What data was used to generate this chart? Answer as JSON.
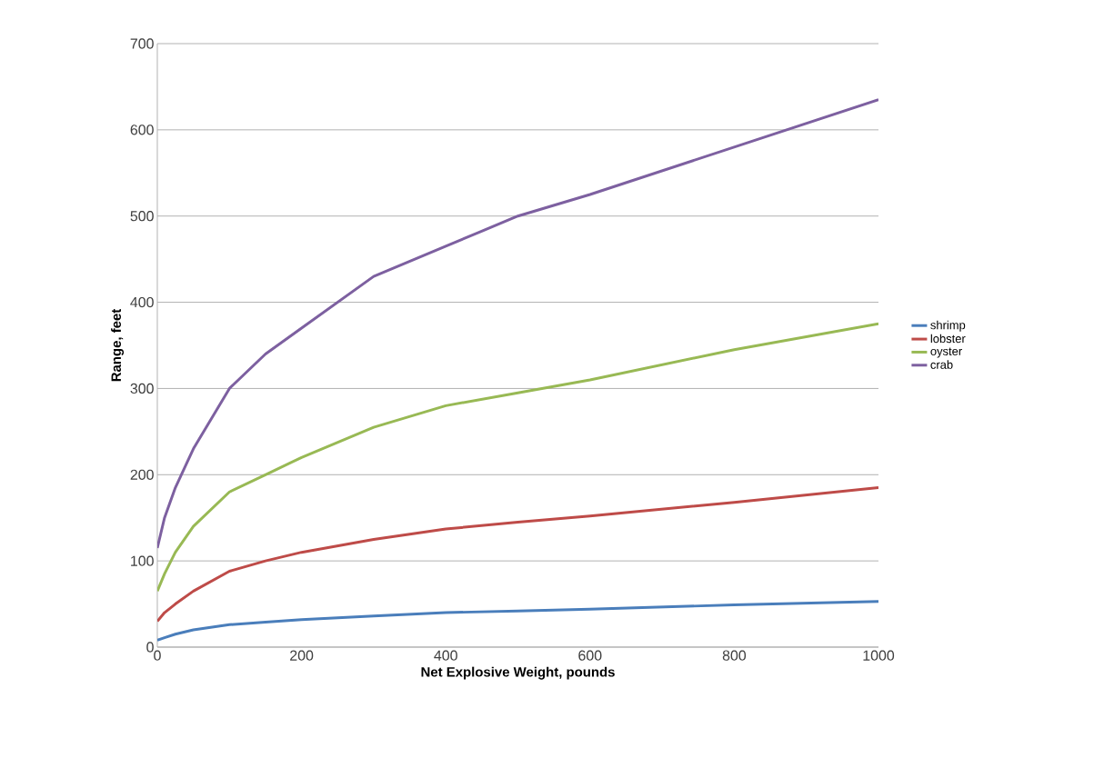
{
  "chart_data": {
    "type": "line",
    "xlabel": "Net Explosive Weight, pounds",
    "ylabel": "Range, feet",
    "x": [
      0,
      10,
      25,
      50,
      100,
      150,
      200,
      300,
      400,
      500,
      600,
      800,
      1000
    ],
    "series": [
      {
        "name": "shrimp",
        "color": "#4a7ebb",
        "values": [
          8,
          11,
          15,
          20,
          26,
          29,
          32,
          36,
          40,
          42,
          44,
          49,
          53
        ]
      },
      {
        "name": "lobster",
        "color": "#be4b48",
        "values": [
          30,
          40,
          50,
          65,
          88,
          100,
          110,
          125,
          137,
          145,
          152,
          168,
          185
        ]
      },
      {
        "name": "oyster",
        "color": "#98b954",
        "values": [
          65,
          85,
          110,
          140,
          180,
          200,
          220,
          255,
          280,
          295,
          310,
          345,
          375
        ]
      },
      {
        "name": "crab",
        "color": "#7d60a0",
        "values": [
          115,
          150,
          185,
          230,
          300,
          340,
          370,
          430,
          465,
          500,
          525,
          580,
          635
        ]
      }
    ],
    "xlim": [
      0,
      1000
    ],
    "ylim": [
      0,
      700
    ],
    "xticks": [
      0,
      200,
      400,
      600,
      800,
      1000
    ],
    "yticks": [
      0,
      100,
      200,
      300,
      400,
      500,
      600,
      700
    ],
    "grid": "y",
    "legend": "right",
    "marker": "none",
    "line_style": "solid"
  }
}
